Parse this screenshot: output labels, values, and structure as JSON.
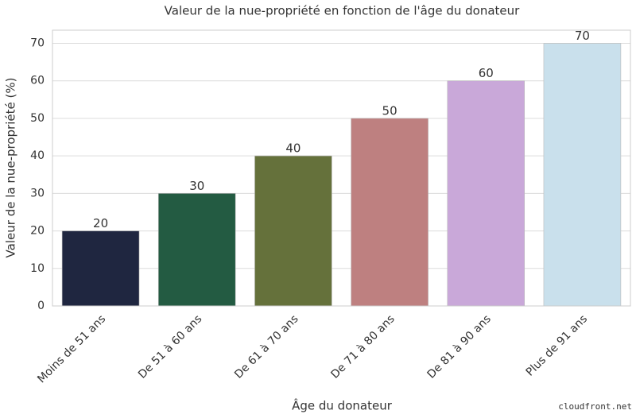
{
  "chart_data": {
    "type": "bar",
    "title": "Valeur de la nue-propriété en fonction de l'âge du donateur",
    "x_label": "Âge du donateur",
    "y_label": "Valeur de la nue-propriété (%)",
    "categories": [
      "Moins de 51 ans",
      "De 51 à 60 ans",
      "De 61 à 70 ans",
      "De 71 à 80 ans",
      "De 81 à 90 ans",
      "Plus de 91 ans"
    ],
    "values": [
      20,
      30,
      40,
      50,
      60,
      70
    ],
    "colors": [
      "#1f2640",
      "#235b42",
      "#65713b",
      "#be8080",
      "#c9a8d9",
      "#c9e0ec"
    ],
    "ylim": [
      0,
      73.5
    ],
    "yticks": [
      0,
      10,
      20,
      30,
      40,
      50,
      60,
      70
    ],
    "grid": true
  },
  "watermark": "cloudfront.net"
}
